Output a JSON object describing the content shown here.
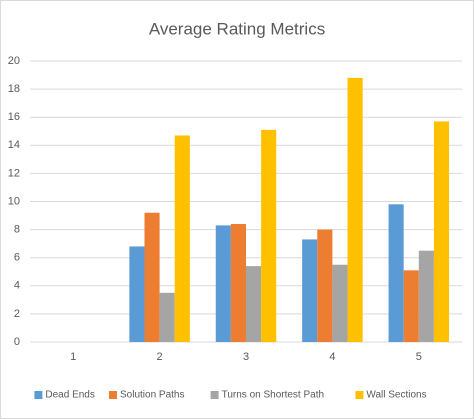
{
  "chart_data": {
    "type": "bar",
    "title": "Average Rating Metrics",
    "categories": [
      "1",
      "2",
      "3",
      "4",
      "5"
    ],
    "series": [
      {
        "name": "Dead Ends",
        "color": "#5b9bd5",
        "values": [
          null,
          6.8,
          8.3,
          7.3,
          9.8
        ]
      },
      {
        "name": "Solution Paths",
        "color": "#ed7d31",
        "values": [
          null,
          9.2,
          8.4,
          8.0,
          5.1
        ]
      },
      {
        "name": "Turns on Shortest Path",
        "color": "#a5a5a5",
        "values": [
          null,
          3.5,
          5.4,
          5.5,
          6.5
        ]
      },
      {
        "name": "Wall Sections",
        "color": "#ffc000",
        "values": [
          null,
          14.7,
          15.1,
          18.8,
          15.7
        ]
      }
    ],
    "ylim": [
      0,
      20
    ],
    "yticks": [
      0,
      2,
      4,
      6,
      8,
      10,
      12,
      14,
      16,
      18,
      20
    ],
    "grid": true,
    "legend": "bottom"
  }
}
